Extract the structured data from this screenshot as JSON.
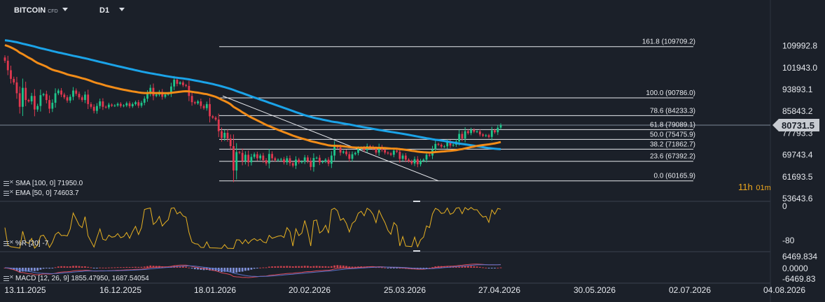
{
  "header": {
    "symbol": "BITCOIN",
    "symbol_type": "CFD",
    "timeframe": "D1"
  },
  "countdown": {
    "hours": "11h",
    "minutes": "01m"
  },
  "indicators": {
    "sma": "SMA [100, 0] 71950.0",
    "ema": "EMA [50, 0] 74603.7",
    "wr": "%R [20] -7",
    "macd": "MACD [12, 26, 9] 1855.47950, 1687.54054"
  },
  "colors": {
    "background": "#1b2029",
    "up_candle": "#1ec58b",
    "down_candle": "#e0384f",
    "sma": "#1ba3e8",
    "ema": "#f28c18",
    "wr_line": "#e6b022",
    "macd_line": "#d94a5a",
    "signal_line": "#5a72c8",
    "hist_pos": "#c9404c",
    "hist_neg": "#7e8fd6"
  },
  "chart_data": [
    {
      "type": "candlestick",
      "name": "price",
      "y_ticks": [
        "109992.8",
        "101943.0",
        "93893.1",
        "85843.2",
        "77793.3",
        "69743.4",
        "61693.5",
        "53643.6"
      ],
      "ylim": [
        53643.6,
        113500
      ],
      "current_price": "80731.5",
      "x_dates": [
        "13.11.2025",
        "16.12.2025",
        "18.01.2026",
        "20.02.2026",
        "25.03.2026",
        "27.04.2026",
        "30.05.2026",
        "02.07.2026",
        "04.08.2026"
      ],
      "fibonacci_levels": [
        {
          "label": "161.8 (109709.2)",
          "value": 109709.2
        },
        {
          "label": "100.0 (90786.0)",
          "value": 90786.0
        },
        {
          "label": "78.6 (84233.3)",
          "value": 84233.3
        },
        {
          "label": "61.8 (79089.1)",
          "value": 79089.1
        },
        {
          "label": "50.0 (75475.9)",
          "value": 75475.9
        },
        {
          "label": "38.2 (71862.7)",
          "value": 71862.7
        },
        {
          "label": "23.6 (67392.2)",
          "value": 67392.2
        },
        {
          "label": "0.0 (60165.9)",
          "value": 60165.9
        }
      ],
      "closes": [
        104500,
        101000,
        97800,
        96500,
        92500,
        87500,
        94500,
        90000,
        89500,
        91500,
        86500,
        87800,
        91800,
        92200,
        90000,
        86800,
        89000,
        92500,
        93500,
        92000,
        91000,
        89800,
        91200,
        93500,
        92300,
        91000,
        90000,
        92000,
        88500,
        87500,
        86000,
        87800,
        89500,
        87500,
        87300,
        88300,
        87900,
        88000,
        88600,
        87800,
        88000,
        88800,
        87700,
        88500,
        89200,
        87900,
        89000,
        90500,
        92500,
        94500,
        91500,
        92000,
        93000,
        91200,
        92000,
        92500,
        95000,
        97500,
        96000,
        96500,
        95500,
        95200,
        91500,
        89200,
        88800,
        89500,
        87800,
        87000,
        88500,
        84000,
        83500,
        82800,
        78500,
        76000,
        77900,
        75800,
        73000,
        64000,
        70800,
        70500,
        67500,
        69800,
        67000,
        69000,
        70000,
        68500,
        69500,
        67800,
        66600,
        70100,
        68500,
        67800,
        68000,
        68200,
        67000,
        68500,
        66700,
        65800,
        68000,
        67000,
        67300,
        68800,
        67500,
        65300,
        68600,
        68700,
        67000,
        67300,
        68000,
        66500,
        69500,
        73000,
        72500,
        70600,
        71000,
        70000,
        68300,
        70000,
        70500,
        72000,
        72400,
        71500,
        73000,
        72700,
        72000,
        70600,
        72700,
        71600,
        70600,
        70300,
        69800,
        71300,
        70900,
        68300,
        69500,
        68000,
        67400,
        66600,
        68200,
        66300,
        67500,
        68000,
        69800,
        69500,
        71800,
        73800,
        73500,
        72800,
        72900,
        74500,
        73200,
        73500,
        74700,
        77500,
        75800,
        78500,
        77800,
        79000,
        78300,
        78400,
        77300,
        76800,
        77000,
        76400,
        78800,
        78100,
        79800,
        80731.5
      ]
    },
    {
      "type": "line",
      "name": "%R [20]",
      "y_ticks": [
        "0",
        "-80"
      ],
      "ylim": [
        -100,
        0
      ],
      "latest": -7
    },
    {
      "type": "bar",
      "name": "MACD [12, 26, 9]",
      "y_ticks": [
        "6469.834",
        "0.0000",
        "-6469.83"
      ],
      "ylim": [
        -6469.83,
        6469.834
      ],
      "macd": 1855.4795,
      "signal": 1687.54054
    }
  ]
}
